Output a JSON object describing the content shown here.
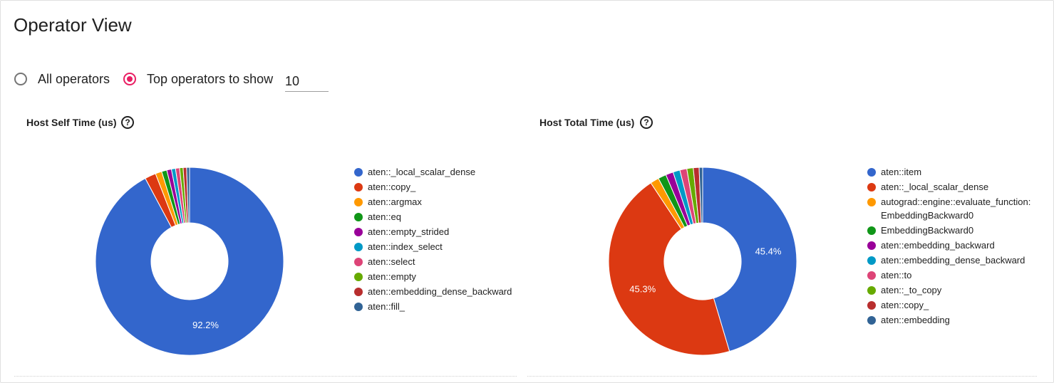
{
  "page": {
    "title": "Operator View"
  },
  "controls": {
    "all_operators_label": "All operators",
    "top_operators_label": "Top operators to show",
    "top_n_value": "10",
    "selected": "top"
  },
  "help_icon": "help-circle-icon",
  "chart_data": [
    {
      "type": "pie",
      "donut": true,
      "title": "Host Self Time (us)",
      "categories": [
        "aten::_local_scalar_dense",
        "aten::copy_",
        "aten::argmax",
        "aten::eq",
        "aten::empty_strided",
        "aten::index_select",
        "aten::select",
        "aten::empty",
        "aten::embedding_dense_backward",
        "aten::fill_"
      ],
      "values": [
        92.2,
        1.9,
        1.1,
        0.9,
        0.8,
        0.7,
        0.7,
        0.6,
        0.6,
        0.5
      ],
      "colors": [
        "#3366cc",
        "#dc3912",
        "#ff9900",
        "#109618",
        "#990099",
        "#0099c6",
        "#dd4477",
        "#66aa00",
        "#b82e2e",
        "#316395"
      ],
      "data_labels": [
        "92.2%",
        "",
        "",
        "",
        "",
        "",
        "",
        "",
        "",
        ""
      ],
      "legend": "right"
    },
    {
      "type": "pie",
      "donut": true,
      "title": "Host Total Time (us)",
      "categories": [
        "aten::item",
        "aten::_local_scalar_dense",
        "autograd::engine::evaluate_function: EmbeddingBackward0",
        "EmbeddingBackward0",
        "aten::embedding_backward",
        "aten::embedding_dense_backward",
        "aten::to",
        "aten::_to_copy",
        "aten::copy_",
        "aten::embedding"
      ],
      "values": [
        45.4,
        45.3,
        1.5,
        1.4,
        1.3,
        1.2,
        1.2,
        1.1,
        1.0,
        0.6
      ],
      "colors": [
        "#3366cc",
        "#dc3912",
        "#ff9900",
        "#109618",
        "#990099",
        "#0099c6",
        "#dd4477",
        "#66aa00",
        "#b82e2e",
        "#316395"
      ],
      "data_labels": [
        "45.4%",
        "45.3%",
        "",
        "",
        "",
        "",
        "",
        "",
        "",
        ""
      ],
      "legend": "right"
    }
  ]
}
